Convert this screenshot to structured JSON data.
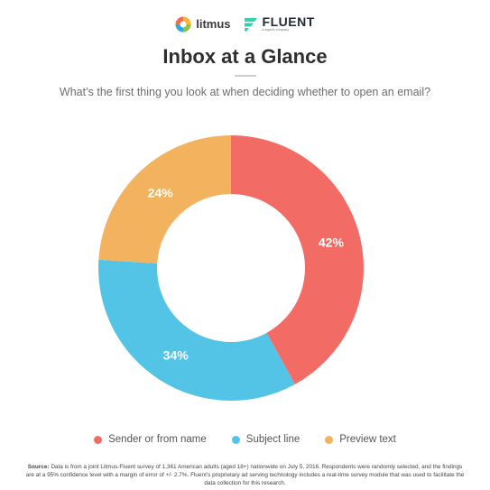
{
  "header": {
    "logo_left": "litmus",
    "logo_right": "FLUENT",
    "logo_right_tagline": "a Ingenio company",
    "title": "Inbox at a Glance",
    "question": "What’s the first thing you look at when deciding whether to open an email?"
  },
  "chart_data": {
    "type": "pie",
    "donut": true,
    "categories": [
      "Sender or from name",
      "Subject line",
      "Preview text"
    ],
    "values": [
      42,
      34,
      24
    ],
    "labels": [
      "42%",
      "34%",
      "24%"
    ],
    "colors": [
      "#f36b65",
      "#54c4e6",
      "#f3b35e"
    ],
    "legend_position": "bottom"
  },
  "legend": [
    {
      "label": "Sender or from name",
      "color": "#f36b65"
    },
    {
      "label": "Subject line",
      "color": "#54c4e6"
    },
    {
      "label": "Preview text",
      "color": "#f3b35e"
    }
  ],
  "footer": {
    "source_label": "Source:",
    "source_text": "Data is from a joint Litmus-Fluent survey of 1,361 American adults (aged 18+) nationwide on July 5, 2016. Respondents were randomly selected, and the findings are at a 95% confidence level with a margin of error of +/- 2.7%. Fluent’s proprietary ad serving technology includes a real-time survey module that was used to facilitate the data collection for this research."
  }
}
